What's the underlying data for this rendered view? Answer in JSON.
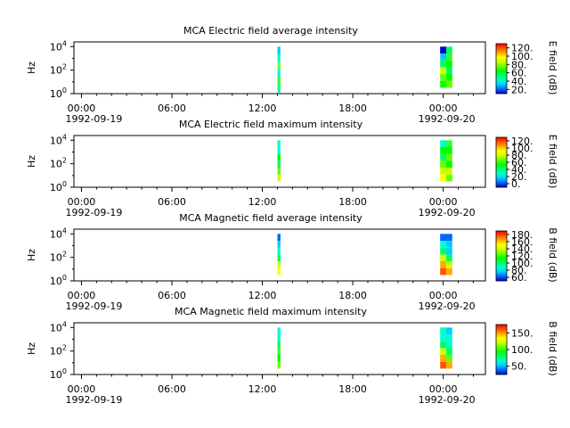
{
  "figure": {
    "time_axis": {
      "tick_labels": [
        "00:00",
        "06:00",
        "12:00",
        "18:00",
        "00:00"
      ],
      "tick_hours": [
        0,
        6,
        12,
        18,
        24
      ],
      "date_start": "1992-09-19",
      "date_end": "1992-09-20",
      "range_hours": [
        -0.5,
        26.8
      ]
    },
    "freq_axis": {
      "label": "Hz",
      "scale": "log",
      "tick_labels": [
        "10^0",
        "10^2",
        "10^4"
      ],
      "tick_exponents": [
        0,
        2,
        4
      ],
      "range_exponents": [
        0,
        4.4
      ]
    }
  },
  "colormap": [
    "#0000cc",
    "#0066ff",
    "#00ccff",
    "#00ffcc",
    "#00ff66",
    "#00ff00",
    "#66ff00",
    "#ccff00",
    "#ffff00",
    "#ffaa00",
    "#ff5500",
    "#ff0000"
  ],
  "chart_data": [
    {
      "type": "heatmap",
      "title": "MCA  Electric field average intensity",
      "ylabel": "Hz",
      "colorbar_label": "E field (dB)",
      "colorbar_ticks": [
        "20.",
        "40.",
        "60.",
        "80.",
        "100.",
        "120."
      ],
      "data_blocks": [
        {
          "t_start": 13.0,
          "t_end": 13.2,
          "f_exp_range": [
            0.1,
            4.0
          ],
          "color_profile": [
            "#00ff88",
            "#33ff33",
            "#00ffcc",
            "#66ff33",
            "#00ffcc",
            "#00ccff"
          ]
        },
        {
          "t_start": 23.8,
          "t_end": 24.2,
          "f_exp_range": [
            0.5,
            4.0
          ],
          "color_profile": [
            "#00ff00",
            "#66ff00",
            "#ccff00",
            "#00ff66",
            "#00ccff",
            "#0000cc"
          ]
        },
        {
          "t_start": 24.2,
          "t_end": 24.6,
          "f_exp_range": [
            0.5,
            4.0
          ],
          "color_profile": [
            "#66ff00",
            "#00ff00",
            "#00ff66",
            "#00ff00",
            "#33ff33",
            "#00ff66"
          ]
        }
      ]
    },
    {
      "type": "heatmap",
      "title": "MCA  Electric field maximum intensity",
      "ylabel": "Hz",
      "colorbar_label": "E field (dB)",
      "colorbar_ticks": [
        "0.",
        "20.",
        "40.",
        "60.",
        "80.",
        "100.",
        "120."
      ],
      "data_blocks": [
        {
          "t_start": 13.0,
          "t_end": 13.2,
          "f_exp_range": [
            0.5,
            4.0
          ],
          "color_profile": [
            "#ccff00",
            "#66ff00",
            "#00ff66",
            "#00ff00",
            "#00ffcc",
            "#00ffcc"
          ]
        },
        {
          "t_start": 23.8,
          "t_end": 24.2,
          "f_exp_range": [
            0.5,
            4.0
          ],
          "color_profile": [
            "#ffff00",
            "#ccff00",
            "#66ff00",
            "#00ff66",
            "#00ff00",
            "#00ffcc"
          ]
        },
        {
          "t_start": 24.2,
          "t_end": 24.6,
          "f_exp_range": [
            0.5,
            4.0
          ],
          "color_profile": [
            "#66ff00",
            "#ccff00",
            "#00ff00",
            "#66ff00",
            "#00ff00",
            "#33ff33"
          ]
        }
      ]
    },
    {
      "type": "heatmap",
      "title": "MCA  Magnetic field average intensity",
      "ylabel": "Hz",
      "colorbar_label": "B field (dB)",
      "colorbar_ticks": [
        "60.",
        "80.",
        "100.",
        "120.",
        "140.",
        "160.",
        "180."
      ],
      "data_blocks": [
        {
          "t_start": 13.0,
          "t_end": 13.2,
          "f_exp_range": [
            0.5,
            4.0
          ],
          "color_profile": [
            "#ffff00",
            "#ccff00",
            "#00ff66",
            "#00ffcc",
            "#00ccff",
            "#0066ff"
          ]
        },
        {
          "t_start": 23.8,
          "t_end": 24.2,
          "f_exp_range": [
            0.5,
            4.0
          ],
          "color_profile": [
            "#ff5500",
            "#ffaa00",
            "#ccff00",
            "#00ff66",
            "#00ffcc",
            "#0066ff"
          ]
        },
        {
          "t_start": 24.2,
          "t_end": 24.6,
          "f_exp_range": [
            0.5,
            4.0
          ],
          "color_profile": [
            "#ffaa00",
            "#ccff00",
            "#00ff66",
            "#00ccff",
            "#00ccff",
            "#0066ff"
          ]
        }
      ]
    },
    {
      "type": "heatmap",
      "title": "MCA  Magnetic field maximum intensity",
      "ylabel": "Hz",
      "colorbar_label": "B field (dB)",
      "colorbar_ticks": [
        "50.",
        "100.",
        "150."
      ],
      "data_blocks": [
        {
          "t_start": 13.0,
          "t_end": 13.2,
          "f_exp_range": [
            0.5,
            4.0
          ],
          "color_profile": [
            "#66ff00",
            "#00ff00",
            "#33ff33",
            "#00ff66",
            "#00ffcc",
            "#00ffcc"
          ]
        },
        {
          "t_start": 23.8,
          "t_end": 24.2,
          "f_exp_range": [
            0.5,
            4.0
          ],
          "color_profile": [
            "#ff5500",
            "#ffaa00",
            "#ccff00",
            "#00ff66",
            "#00ffcc",
            "#00ffcc"
          ]
        },
        {
          "t_start": 24.2,
          "t_end": 24.6,
          "f_exp_range": [
            0.5,
            4.0
          ],
          "color_profile": [
            "#ffaa00",
            "#66ff00",
            "#00ff66",
            "#00ffcc",
            "#00ffcc",
            "#00ccff"
          ]
        }
      ]
    }
  ]
}
